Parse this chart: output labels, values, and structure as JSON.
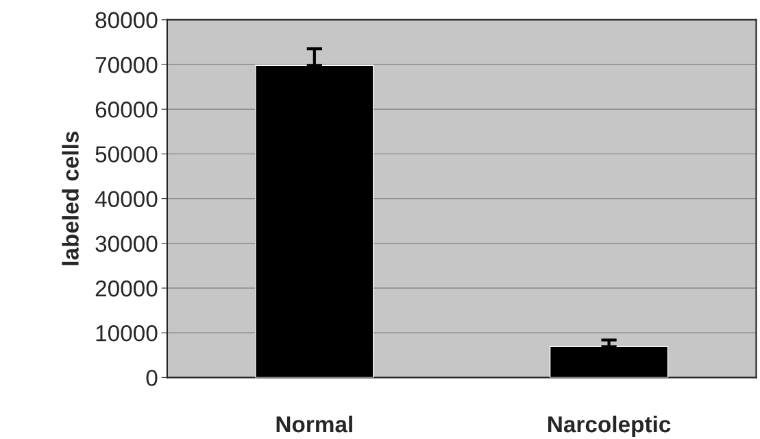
{
  "chart_data": {
    "type": "bar",
    "ylabel": "labeled cells",
    "categories": [
      "Normal",
      "Narcoleptic"
    ],
    "values": [
      69800,
      6900
    ],
    "errors": [
      [
        69800,
        73500
      ],
      [
        6900,
        8400
      ]
    ],
    "colors": [
      "#000000",
      "#000000"
    ],
    "ylim": [
      0,
      80000
    ],
    "yticks": [
      0,
      10000,
      20000,
      30000,
      40000,
      50000,
      60000,
      70000,
      80000
    ],
    "grid": "y"
  }
}
